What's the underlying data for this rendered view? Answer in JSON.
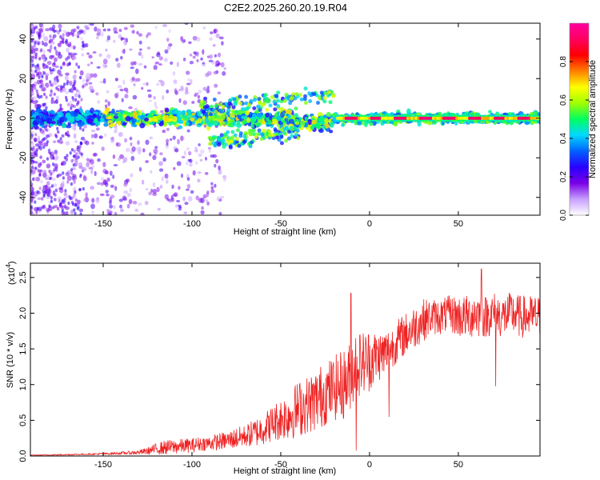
{
  "figure": {
    "title": "C2E2.2025.260.20.19.R04"
  },
  "chart_data": [
    {
      "type": "heatmap",
      "title": "C2E2.2025.260.20.19.R04",
      "xlabel": "Height of straight line (km)",
      "ylabel": "Frequency (Hz)",
      "xlim": [
        -191,
        96
      ],
      "ylim": [
        -49,
        48
      ],
      "xticks": [
        -150,
        -100,
        -50,
        0,
        50
      ],
      "yticks": [
        -40,
        -20,
        0,
        20,
        40
      ],
      "grid": false,
      "colorbar": {
        "label": "Normalized spectral amplitude",
        "range": [
          0,
          1
        ],
        "ticks": [
          "0.0",
          "0.2",
          "0.4",
          "0.6",
          "0.8"
        ],
        "colors": [
          "#ffffff",
          "#c8a0ff",
          "#7a00e6",
          "#2a00ff",
          "#0060ff",
          "#00d8ff",
          "#00ff60",
          "#a0ff00",
          "#ffff00",
          "#ff8000",
          "#ff0000",
          "#ff0060",
          "#ff00a0"
        ]
      },
      "features": [
        {
          "name": "main band",
          "x_range": [
            -191,
            96
          ],
          "freq_hz": 0
        },
        {
          "name": "upper branch",
          "x_range": [
            -95,
            -20
          ],
          "freq_hz_start": 5,
          "freq_hz_end": 12
        },
        {
          "name": "lower branch",
          "x_range": [
            -90,
            -40
          ],
          "freq_hz_start": -12,
          "freq_hz_end": -6
        },
        {
          "name": "peak amplitude segment",
          "x_range": [
            -18,
            95
          ],
          "freq_hz": 0,
          "amplitude": 0.9
        }
      ]
    },
    {
      "type": "line",
      "xlabel": "Height of straight line (km)",
      "ylabel": "SNR (10 * v/v)",
      "y_multiplier_label": "(x10",
      "y_multiplier_exp": "4",
      "y_multiplier_close": ")",
      "xlim": [
        -191,
        96
      ],
      "ylim": [
        0,
        2.7
      ],
      "xticks": [
        -150,
        -100,
        -50,
        0,
        50
      ],
      "yticks": [
        "0.0",
        "0.5",
        "1.0",
        "1.5",
        "2.0",
        "2.5"
      ],
      "series": [
        {
          "name": "SNR",
          "color": "#ee2222",
          "x": [
            -191,
            -180,
            -170,
            -160,
            -150,
            -140,
            -130,
            -125,
            -120,
            -115,
            -110,
            -105,
            -100,
            -95,
            -90,
            -85,
            -80,
            -75,
            -70,
            -65,
            -60,
            -55,
            -50,
            -45,
            -40,
            -35,
            -30,
            -25,
            -20,
            -15,
            -12,
            -10,
            -8,
            -5,
            0,
            5,
            10,
            12,
            15,
            20,
            25,
            30,
            35,
            40,
            45,
            50,
            55,
            60,
            65,
            70,
            75,
            80,
            85,
            90,
            96
          ],
          "mean": [
            0.01,
            0.015,
            0.02,
            0.025,
            0.03,
            0.04,
            0.05,
            0.07,
            0.1,
            0.12,
            0.13,
            0.14,
            0.15,
            0.17,
            0.18,
            0.2,
            0.22,
            0.25,
            0.28,
            0.32,
            0.38,
            0.45,
            0.52,
            0.58,
            0.66,
            0.72,
            0.78,
            0.88,
            0.95,
            1.0,
            1.05,
            1.2,
            1.3,
            1.3,
            1.35,
            1.4,
            1.45,
            1.5,
            1.6,
            1.7,
            1.8,
            1.9,
            1.95,
            1.95,
            2.0,
            1.95,
            1.95,
            2.0,
            1.95,
            2.0,
            1.95,
            2.0,
            1.95,
            1.95,
            1.95
          ],
          "spread": [
            0.005,
            0.008,
            0.01,
            0.01,
            0.015,
            0.02,
            0.03,
            0.05,
            0.08,
            0.1,
            0.1,
            0.1,
            0.1,
            0.1,
            0.1,
            0.12,
            0.12,
            0.15,
            0.15,
            0.2,
            0.22,
            0.25,
            0.3,
            0.35,
            0.4,
            0.4,
            0.45,
            0.45,
            0.45,
            0.5,
            0.5,
            0.5,
            0.5,
            0.45,
            0.45,
            0.35,
            0.35,
            0.3,
            0.3,
            0.3,
            0.3,
            0.3,
            0.25,
            0.25,
            0.25,
            0.3,
            0.3,
            0.35,
            0.3,
            0.3,
            0.3,
            0.3,
            0.3,
            0.3,
            0.3
          ],
          "spikes": [
            {
              "x": -10.5,
              "y": 2.28
            },
            {
              "x": -7.5,
              "y": 0.08
            },
            {
              "x": 11,
              "y": 0.55
            },
            {
              "x": 63,
              "y": 2.62
            },
            {
              "x": 71,
              "y": 0.98
            }
          ]
        }
      ]
    }
  ]
}
